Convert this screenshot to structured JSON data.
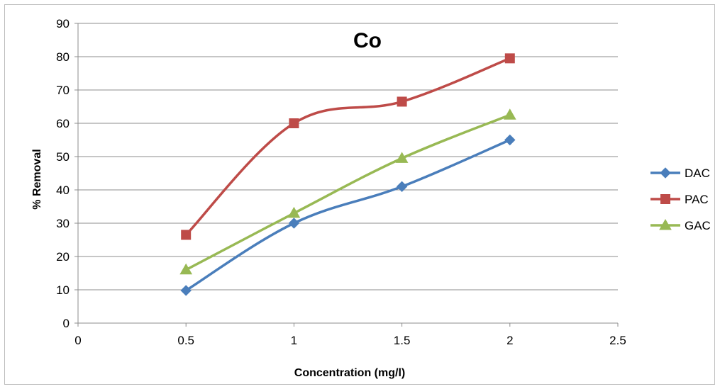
{
  "chart_data": {
    "type": "line",
    "title": "Co",
    "xlabel": "Concentration (mg/l)",
    "ylabel": "% Removal",
    "xlim": [
      0,
      2.5
    ],
    "ylim": [
      0,
      90
    ],
    "x_ticks": [
      "0",
      "0.5",
      "1",
      "1.5",
      "2",
      "2.5"
    ],
    "y_ticks": [
      "0",
      "10",
      "20",
      "30",
      "40",
      "50",
      "60",
      "70",
      "80",
      "90"
    ],
    "grid": "horizontal",
    "legend_position": "right",
    "x": [
      0.5,
      1,
      1.5,
      2
    ],
    "series": [
      {
        "name": "DAC",
        "values": [
          9.8,
          30,
          41,
          55
        ],
        "color": "#4a7ebb",
        "marker": "diamond"
      },
      {
        "name": "PAC",
        "values": [
          26.5,
          60,
          66.5,
          79.5
        ],
        "color": "#be4b48",
        "marker": "square"
      },
      {
        "name": "GAC",
        "values": [
          16,
          33,
          49.5,
          62.5
        ],
        "color": "#98b954",
        "marker": "triangle"
      }
    ]
  }
}
